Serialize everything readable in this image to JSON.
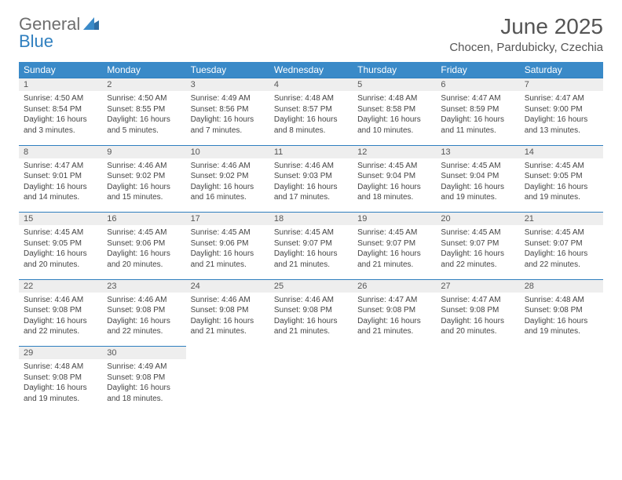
{
  "brand": {
    "word1": "General",
    "word2": "Blue",
    "mark_color": "#2f6da3"
  },
  "header": {
    "title": "June 2025",
    "location": "Chocen, Pardubicky, Czechia"
  },
  "colors": {
    "header_bg": "#3a8ac8",
    "header_text": "#ffffff",
    "daynum_bg": "#eeeeee",
    "daynum_border": "#2f7fbf",
    "text": "#444444",
    "title_text": "#555555"
  },
  "day_names": [
    "Sunday",
    "Monday",
    "Tuesday",
    "Wednesday",
    "Thursday",
    "Friday",
    "Saturday"
  ],
  "weeks": [
    [
      {
        "n": "1",
        "sunrise": "4:50 AM",
        "sunset": "8:54 PM",
        "daylight": "16 hours and 3 minutes."
      },
      {
        "n": "2",
        "sunrise": "4:50 AM",
        "sunset": "8:55 PM",
        "daylight": "16 hours and 5 minutes."
      },
      {
        "n": "3",
        "sunrise": "4:49 AM",
        "sunset": "8:56 PM",
        "daylight": "16 hours and 7 minutes."
      },
      {
        "n": "4",
        "sunrise": "4:48 AM",
        "sunset": "8:57 PM",
        "daylight": "16 hours and 8 minutes."
      },
      {
        "n": "5",
        "sunrise": "4:48 AM",
        "sunset": "8:58 PM",
        "daylight": "16 hours and 10 minutes."
      },
      {
        "n": "6",
        "sunrise": "4:47 AM",
        "sunset": "8:59 PM",
        "daylight": "16 hours and 11 minutes."
      },
      {
        "n": "7",
        "sunrise": "4:47 AM",
        "sunset": "9:00 PM",
        "daylight": "16 hours and 13 minutes."
      }
    ],
    [
      {
        "n": "8",
        "sunrise": "4:47 AM",
        "sunset": "9:01 PM",
        "daylight": "16 hours and 14 minutes."
      },
      {
        "n": "9",
        "sunrise": "4:46 AM",
        "sunset": "9:02 PM",
        "daylight": "16 hours and 15 minutes."
      },
      {
        "n": "10",
        "sunrise": "4:46 AM",
        "sunset": "9:02 PM",
        "daylight": "16 hours and 16 minutes."
      },
      {
        "n": "11",
        "sunrise": "4:46 AM",
        "sunset": "9:03 PM",
        "daylight": "16 hours and 17 minutes."
      },
      {
        "n": "12",
        "sunrise": "4:45 AM",
        "sunset": "9:04 PM",
        "daylight": "16 hours and 18 minutes."
      },
      {
        "n": "13",
        "sunrise": "4:45 AM",
        "sunset": "9:04 PM",
        "daylight": "16 hours and 19 minutes."
      },
      {
        "n": "14",
        "sunrise": "4:45 AM",
        "sunset": "9:05 PM",
        "daylight": "16 hours and 19 minutes."
      }
    ],
    [
      {
        "n": "15",
        "sunrise": "4:45 AM",
        "sunset": "9:05 PM",
        "daylight": "16 hours and 20 minutes."
      },
      {
        "n": "16",
        "sunrise": "4:45 AM",
        "sunset": "9:06 PM",
        "daylight": "16 hours and 20 minutes."
      },
      {
        "n": "17",
        "sunrise": "4:45 AM",
        "sunset": "9:06 PM",
        "daylight": "16 hours and 21 minutes."
      },
      {
        "n": "18",
        "sunrise": "4:45 AM",
        "sunset": "9:07 PM",
        "daylight": "16 hours and 21 minutes."
      },
      {
        "n": "19",
        "sunrise": "4:45 AM",
        "sunset": "9:07 PM",
        "daylight": "16 hours and 21 minutes."
      },
      {
        "n": "20",
        "sunrise": "4:45 AM",
        "sunset": "9:07 PM",
        "daylight": "16 hours and 22 minutes."
      },
      {
        "n": "21",
        "sunrise": "4:45 AM",
        "sunset": "9:07 PM",
        "daylight": "16 hours and 22 minutes."
      }
    ],
    [
      {
        "n": "22",
        "sunrise": "4:46 AM",
        "sunset": "9:08 PM",
        "daylight": "16 hours and 22 minutes."
      },
      {
        "n": "23",
        "sunrise": "4:46 AM",
        "sunset": "9:08 PM",
        "daylight": "16 hours and 22 minutes."
      },
      {
        "n": "24",
        "sunrise": "4:46 AM",
        "sunset": "9:08 PM",
        "daylight": "16 hours and 21 minutes."
      },
      {
        "n": "25",
        "sunrise": "4:46 AM",
        "sunset": "9:08 PM",
        "daylight": "16 hours and 21 minutes."
      },
      {
        "n": "26",
        "sunrise": "4:47 AM",
        "sunset": "9:08 PM",
        "daylight": "16 hours and 21 minutes."
      },
      {
        "n": "27",
        "sunrise": "4:47 AM",
        "sunset": "9:08 PM",
        "daylight": "16 hours and 20 minutes."
      },
      {
        "n": "28",
        "sunrise": "4:48 AM",
        "sunset": "9:08 PM",
        "daylight": "16 hours and 19 minutes."
      }
    ],
    [
      {
        "n": "29",
        "sunrise": "4:48 AM",
        "sunset": "9:08 PM",
        "daylight": "16 hours and 19 minutes."
      },
      {
        "n": "30",
        "sunrise": "4:49 AM",
        "sunset": "9:08 PM",
        "daylight": "16 hours and 18 minutes."
      },
      null,
      null,
      null,
      null,
      null
    ]
  ],
  "labels": {
    "sunrise": "Sunrise: ",
    "sunset": "Sunset: ",
    "daylight": "Daylight: "
  }
}
